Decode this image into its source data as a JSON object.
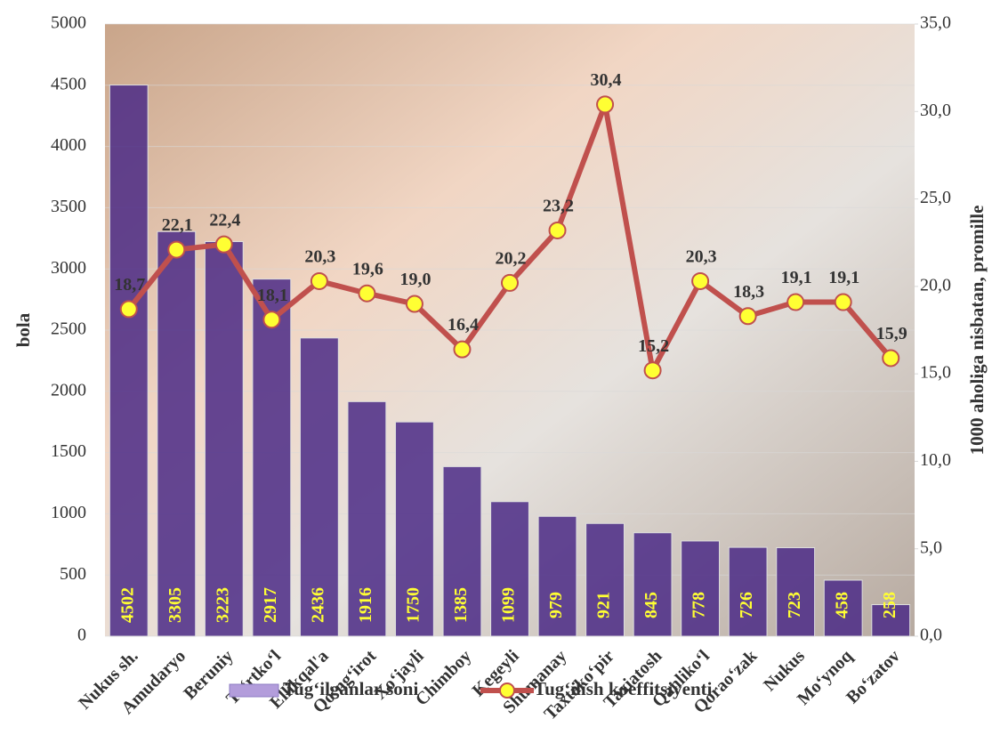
{
  "chart_data": {
    "type": "bar-line",
    "categories": [
      "Nukus sh.",
      "Amudaryo",
      "Beruniy",
      "To‘rtko‘l",
      "Ellikqal'a",
      "Qo‘ng‘irot",
      "Xo‘jayli",
      "Chimboy",
      "Kegeyli",
      "Shumanay",
      "Taxtako‘pir",
      "Taxiatosh",
      "Qanliko‘l",
      "Qorao‘zak",
      "Nukus",
      "Mo‘ynoq",
      "Bo‘zatov"
    ],
    "series": [
      {
        "name": "Tug‘ilganlar soni",
        "type": "bar",
        "color": "#4b2a86",
        "legend_color": "#b39ddb",
        "label_color": "#ffff33",
        "values": [
          4502,
          3305,
          3223,
          2917,
          2436,
          1916,
          1750,
          1385,
          1099,
          979,
          921,
          845,
          778,
          726,
          723,
          458,
          258
        ]
      },
      {
        "name": "Tug‘ilish koeffitsiyenti",
        "type": "line",
        "axis": "y2",
        "color": "#c0504d",
        "marker_color": "#ffff33",
        "values": [
          18.7,
          22.1,
          22.4,
          18.1,
          20.3,
          19.6,
          19.0,
          16.4,
          20.2,
          23.2,
          30.4,
          15.2,
          20.3,
          18.3,
          19.1,
          19.1,
          15.9
        ],
        "value_labels": [
          "18,7",
          "22,1",
          "22,4",
          "18,1",
          "20,3",
          "19,6",
          "19,0",
          "16,4",
          "20,2",
          "23,2",
          "30,4",
          "15,2",
          "20,3",
          "18,3",
          "19,1",
          "19,1",
          "15,9"
        ]
      }
    ],
    "y_label": "bola",
    "y2_label": "1000 aholiga nisbatan, promille",
    "ylim": [
      0,
      5000
    ],
    "yticks": [
      0,
      500,
      1000,
      1500,
      2000,
      2500,
      3000,
      3500,
      4000,
      4500,
      5000
    ],
    "y2lim": [
      0,
      35
    ],
    "y2ticks": [
      {
        "value": 0,
        "label": "0,0"
      },
      {
        "value": 5,
        "label": "5,0"
      },
      {
        "value": 10,
        "label": "10,0"
      },
      {
        "value": 15,
        "label": "15,0"
      },
      {
        "value": 20,
        "label": "20,0"
      },
      {
        "value": 25,
        "label": "25,0"
      },
      {
        "value": 30,
        "label": "30,0"
      },
      {
        "value": 35,
        "label": "35,0"
      }
    ],
    "grid": true
  }
}
